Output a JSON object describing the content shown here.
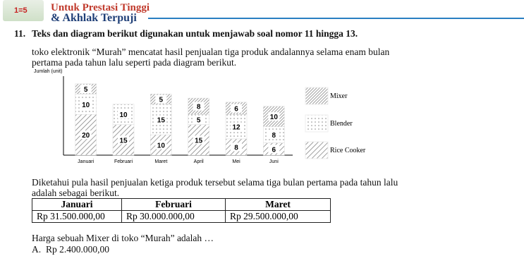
{
  "header": {
    "logo": "1=5",
    "line1": "Untuk Prestasi Tinggi",
    "line2": "& Akhlak Terpuji"
  },
  "question": {
    "number": "11.",
    "heading": "Teks dan diagram berikut digunakan untuk menjawab soal nomor 11 hingga 13.",
    "intro": [
      "toko elektronik “Murah” mencatat hasil penjualan tiga produk andalannya selama enam bulan",
      "pertama pada tahun lalu seperti pada diagram berikut."
    ]
  },
  "chart_data": {
    "type": "stacked_bar",
    "y_label": "Jumlah (unit)",
    "categories": [
      "Januari",
      "Februari",
      "Maret",
      "April",
      "Mei",
      "Juni"
    ],
    "series": [
      {
        "name": "Mixer",
        "color": "#888888",
        "values": [
          5,
          null,
          5,
          8,
          6,
          10
        ]
      },
      {
        "name": "Blender",
        "color": "#888888",
        "values": [
          10,
          10,
          15,
          5,
          12,
          8
        ]
      },
      {
        "name": "Rice Cooker",
        "color": "#777777",
        "values": [
          20,
          15,
          10,
          15,
          8,
          6
        ]
      }
    ],
    "ylim": [
      0,
      36
    ]
  },
  "after_chart": [
    "Diketahui pula hasil penjualan ketiga produk tersebut selama tiga bulan pertama pada tahun lalu",
    "adalah sebagai berikut."
  ],
  "table": {
    "headers": [
      "Januari",
      "Februari",
      "Maret"
    ],
    "rows": [
      [
        "Rp 31.500.000,00",
        "Rp 30.000.000,00",
        "Rp 29.500.000,00"
      ]
    ]
  },
  "question_text": "Harga sebuah Mixer di toko “Murah” adalah …",
  "options": [
    {
      "letter": "A.",
      "text": "Rp 2.400.000,00"
    }
  ]
}
